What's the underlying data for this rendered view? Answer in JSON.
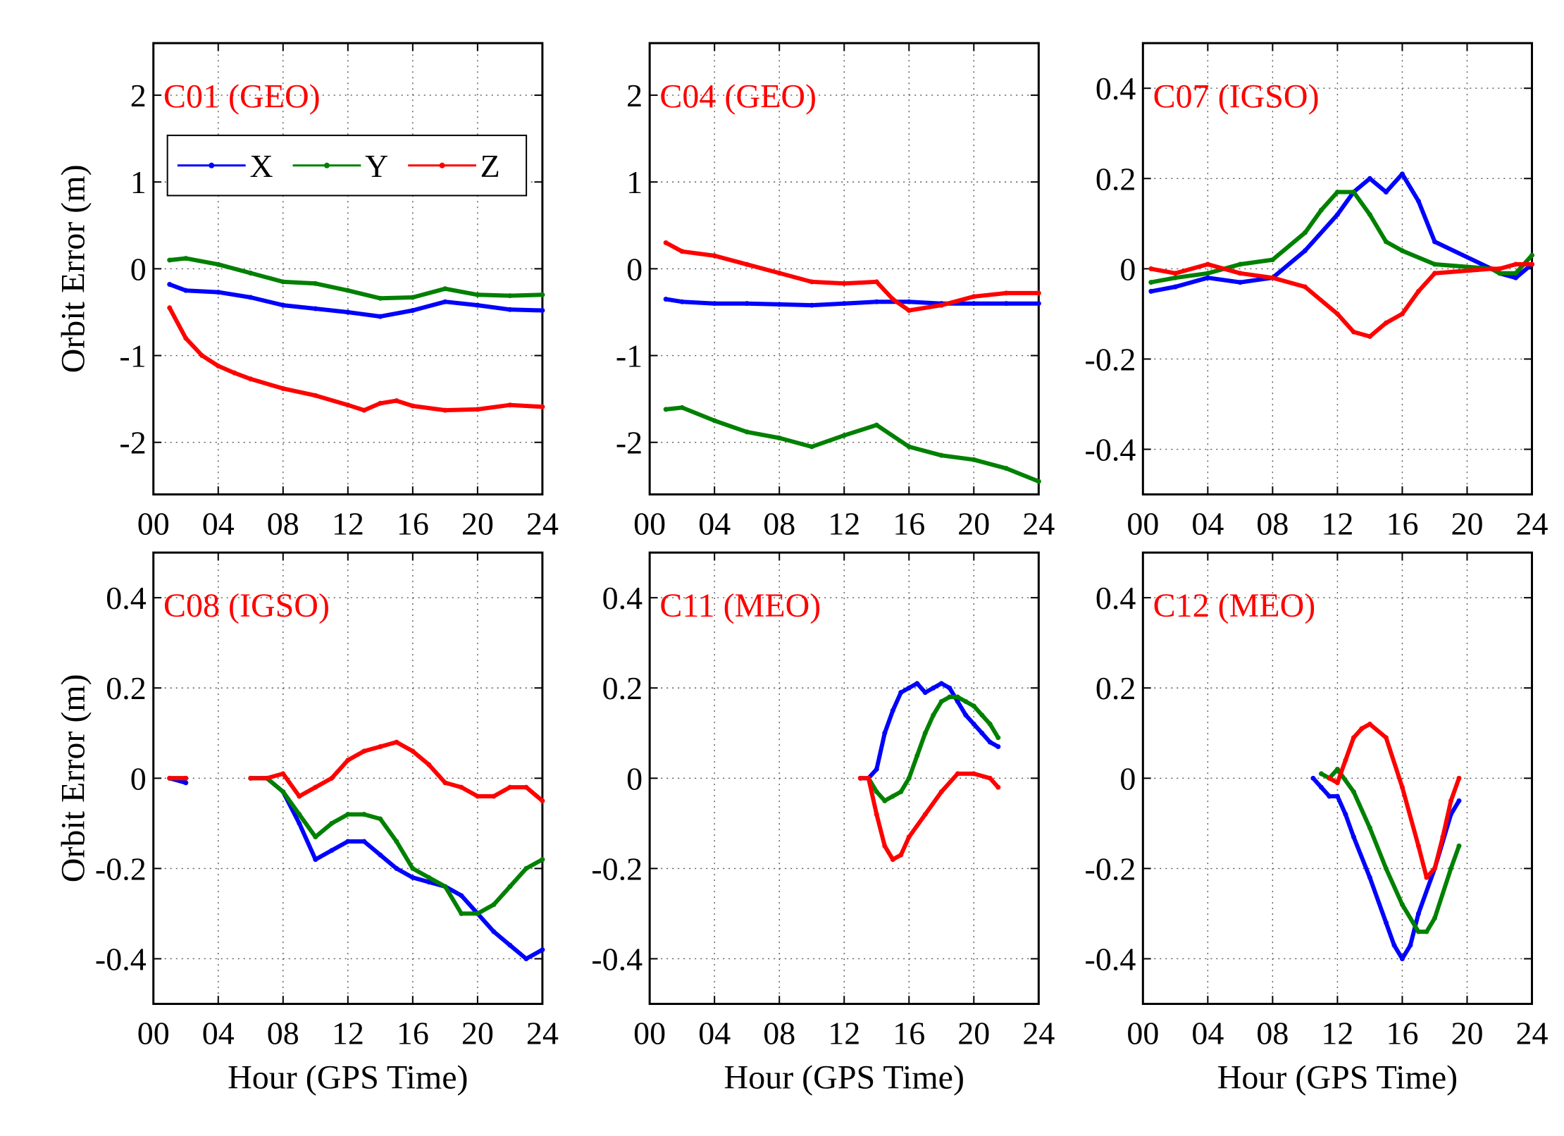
{
  "chart_data": [
    {
      "type": "line",
      "title": "C01 (GEO)",
      "xlabel": "",
      "ylabel": "Orbit Error (m)",
      "xlim": [
        0,
        24
      ],
      "ylim": [
        -2.6,
        2.6
      ],
      "xticks": [
        0,
        4,
        8,
        12,
        16,
        20,
        24
      ],
      "xtick_labels": [
        "00",
        "04",
        "08",
        "12",
        "16",
        "20",
        "24"
      ],
      "yticks": [
        -2,
        -1,
        0,
        1,
        2
      ],
      "ytick_labels": [
        "-2",
        "-1",
        "0",
        "1",
        "2"
      ],
      "grid": true,
      "legend": {
        "position": "top-left",
        "entries": [
          "X",
          "Y",
          "Z"
        ]
      },
      "series": [
        {
          "name": "X",
          "color": "#0000ff",
          "x": [
            1,
            2,
            4,
            6,
            8,
            10,
            12,
            14,
            16,
            18,
            20,
            22,
            24
          ],
          "y": [
            -0.18,
            -0.25,
            -0.27,
            -0.33,
            -0.42,
            -0.46,
            -0.5,
            -0.55,
            -0.48,
            -0.38,
            -0.42,
            -0.47,
            -0.48
          ]
        },
        {
          "name": "Y",
          "color": "#008000",
          "x": [
            1,
            2,
            4,
            6,
            8,
            10,
            12,
            14,
            16,
            18,
            20,
            22,
            24
          ],
          "y": [
            0.1,
            0.12,
            0.05,
            -0.05,
            -0.15,
            -0.17,
            -0.25,
            -0.34,
            -0.33,
            -0.23,
            -0.3,
            -0.31,
            -0.3
          ]
        },
        {
          "name": "Z",
          "color": "#ff0000",
          "x": [
            1,
            2,
            3,
            4,
            5,
            6,
            8,
            10,
            12,
            13,
            14,
            15,
            16,
            18,
            20,
            22,
            24
          ],
          "y": [
            -0.45,
            -0.8,
            -1.0,
            -1.12,
            -1.2,
            -1.27,
            -1.38,
            -1.46,
            -1.57,
            -1.63,
            -1.55,
            -1.52,
            -1.58,
            -1.63,
            -1.62,
            -1.57,
            -1.59
          ]
        }
      ]
    },
    {
      "type": "line",
      "title": "C04 (GEO)",
      "xlabel": "",
      "ylabel": "",
      "xlim": [
        0,
        24
      ],
      "ylim": [
        -2.6,
        2.6
      ],
      "xticks": [
        0,
        4,
        8,
        12,
        16,
        20,
        24
      ],
      "xtick_labels": [
        "00",
        "04",
        "08",
        "12",
        "16",
        "20",
        "24"
      ],
      "yticks": [
        -2,
        -1,
        0,
        1,
        2
      ],
      "ytick_labels": [
        "-2",
        "-1",
        "0",
        "1",
        "2"
      ],
      "grid": true,
      "series": [
        {
          "name": "X",
          "color": "#0000ff",
          "x": [
            1,
            2,
            4,
            6,
            8,
            10,
            12,
            14,
            16,
            18,
            20,
            22,
            24
          ],
          "y": [
            -0.35,
            -0.38,
            -0.4,
            -0.4,
            -0.41,
            -0.42,
            -0.4,
            -0.38,
            -0.38,
            -0.4,
            -0.4,
            -0.4,
            -0.4
          ]
        },
        {
          "name": "Y",
          "color": "#008000",
          "x": [
            1,
            2,
            4,
            6,
            8,
            10,
            12,
            14,
            16,
            18,
            20,
            22,
            24
          ],
          "y": [
            -1.62,
            -1.6,
            -1.75,
            -1.88,
            -1.95,
            -2.05,
            -1.92,
            -1.8,
            -2.05,
            -2.15,
            -2.2,
            -2.3,
            -2.45
          ]
        },
        {
          "name": "Z",
          "color": "#ff0000",
          "x": [
            1,
            2,
            4,
            6,
            8,
            10,
            12,
            14,
            15,
            16,
            18,
            20,
            22,
            24
          ],
          "y": [
            0.3,
            0.2,
            0.15,
            0.05,
            -0.05,
            -0.15,
            -0.17,
            -0.15,
            -0.35,
            -0.48,
            -0.42,
            -0.32,
            -0.28,
            -0.28
          ]
        }
      ]
    },
    {
      "type": "line",
      "title": "C07 (IGSO)",
      "xlabel": "",
      "ylabel": "",
      "xlim": [
        0,
        24
      ],
      "ylim": [
        -0.5,
        0.5
      ],
      "xticks": [
        0,
        4,
        8,
        12,
        16,
        20,
        24
      ],
      "xtick_labels": [
        "00",
        "04",
        "08",
        "12",
        "16",
        "20",
        "24"
      ],
      "yticks": [
        -0.4,
        -0.2,
        0,
        0.2,
        0.4
      ],
      "ytick_labels": [
        "-0.4",
        "-0.2",
        "0",
        "0.2",
        "0.4"
      ],
      "grid": true,
      "series": [
        {
          "name": "X",
          "color": "#0000ff",
          "x": [
            0.5,
            2,
            4,
            6,
            8,
            10,
            12,
            13,
            14,
            15,
            16,
            17,
            18,
            21.5,
            22,
            23,
            24
          ],
          "y": [
            -0.05,
            -0.04,
            -0.02,
            -0.03,
            -0.02,
            0.04,
            0.12,
            0.17,
            0.2,
            0.17,
            0.21,
            0.15,
            0.06,
            0.0,
            -0.01,
            -0.02,
            0.01
          ]
        },
        {
          "name": "Y",
          "color": "#008000",
          "x": [
            0.5,
            2,
            4,
            6,
            8,
            10,
            11,
            12,
            13,
            14,
            15,
            16,
            18,
            21.5,
            22,
            23,
            24
          ],
          "y": [
            -0.03,
            -0.02,
            -0.01,
            0.01,
            0.02,
            0.08,
            0.13,
            0.17,
            0.17,
            0.12,
            0.06,
            0.04,
            0.01,
            0.0,
            -0.01,
            -0.01,
            0.03
          ]
        },
        {
          "name": "Z",
          "color": "#ff0000",
          "x": [
            0.5,
            2,
            4,
            6,
            8,
            10,
            12,
            13,
            14,
            15,
            16,
            17,
            18,
            21.5,
            22,
            23,
            24
          ],
          "y": [
            0.0,
            -0.01,
            0.01,
            -0.01,
            -0.02,
            -0.04,
            -0.1,
            -0.14,
            -0.15,
            -0.12,
            -0.1,
            -0.05,
            -0.01,
            0.0,
            0.0,
            0.01,
            0.01
          ]
        }
      ]
    },
    {
      "type": "line",
      "title": "C08 (IGSO)",
      "xlabel": "Hour (GPS Time)",
      "ylabel": "Orbit Error (m)",
      "xlim": [
        0,
        24
      ],
      "ylim": [
        -0.5,
        0.5
      ],
      "xticks": [
        0,
        4,
        8,
        12,
        16,
        20,
        24
      ],
      "xtick_labels": [
        "00",
        "04",
        "08",
        "12",
        "16",
        "20",
        "24"
      ],
      "yticks": [
        -0.4,
        -0.2,
        0,
        0.2,
        0.4
      ],
      "ytick_labels": [
        "-0.4",
        "-0.2",
        "0",
        "0.2",
        "0.4"
      ],
      "grid": true,
      "series": [
        {
          "name": "X",
          "color": "#0000ff",
          "x": [
            1,
            2,
            null,
            6,
            7,
            8,
            9,
            10,
            11,
            12,
            13,
            14,
            15,
            16,
            17,
            18,
            19,
            20,
            21,
            22,
            23,
            24
          ],
          "y": [
            0.0,
            -0.01,
            null,
            0.0,
            0.0,
            -0.03,
            -0.1,
            -0.18,
            -0.16,
            -0.14,
            -0.14,
            -0.17,
            -0.2,
            -0.22,
            -0.23,
            -0.24,
            -0.26,
            -0.3,
            -0.34,
            -0.37,
            -0.4,
            -0.38
          ]
        },
        {
          "name": "Y",
          "color": "#008000",
          "x": [
            1,
            2,
            null,
            6,
            7,
            8,
            9,
            10,
            11,
            12,
            13,
            14,
            15,
            16,
            17,
            18,
            19,
            20,
            21,
            22,
            23,
            24
          ],
          "y": [
            0.0,
            0.0,
            null,
            0.0,
            0.0,
            -0.03,
            -0.08,
            -0.13,
            -0.1,
            -0.08,
            -0.08,
            -0.09,
            -0.14,
            -0.2,
            -0.22,
            -0.24,
            -0.3,
            -0.3,
            -0.28,
            -0.24,
            -0.2,
            -0.18
          ]
        },
        {
          "name": "Z",
          "color": "#ff0000",
          "x": [
            1,
            2,
            null,
            6,
            7,
            8,
            9,
            10,
            11,
            12,
            13,
            14,
            15,
            16,
            17,
            18,
            19,
            20,
            21,
            22,
            23,
            24
          ],
          "y": [
            0.0,
            0.0,
            null,
            0.0,
            0.0,
            0.01,
            -0.04,
            -0.02,
            0.0,
            0.04,
            0.06,
            0.07,
            0.08,
            0.06,
            0.03,
            -0.01,
            -0.02,
            -0.04,
            -0.04,
            -0.02,
            -0.02,
            -0.05
          ]
        }
      ]
    },
    {
      "type": "line",
      "title": "C11 (MEO)",
      "xlabel": "Hour (GPS Time)",
      "ylabel": "",
      "xlim": [
        0,
        24
      ],
      "ylim": [
        -0.5,
        0.5
      ],
      "xticks": [
        0,
        4,
        8,
        12,
        16,
        20,
        24
      ],
      "xtick_labels": [
        "00",
        "04",
        "08",
        "12",
        "16",
        "20",
        "24"
      ],
      "yticks": [
        -0.4,
        -0.2,
        0,
        0.2,
        0.4
      ],
      "ytick_labels": [
        "-0.4",
        "-0.2",
        "0",
        "0.2",
        "0.4"
      ],
      "grid": true,
      "series": [
        {
          "name": "X",
          "color": "#0000ff",
          "x": [
            13,
            13.5,
            14,
            14.5,
            15,
            15.5,
            16,
            16.5,
            17,
            17.5,
            18,
            18.5,
            19,
            19.5,
            20,
            20.5,
            21,
            21.5
          ],
          "y": [
            0.0,
            0.0,
            0.02,
            0.1,
            0.15,
            0.19,
            0.2,
            0.21,
            0.19,
            0.2,
            0.21,
            0.2,
            0.17,
            0.14,
            0.12,
            0.1,
            0.08,
            0.07
          ]
        },
        {
          "name": "Y",
          "color": "#008000",
          "x": [
            13.5,
            14,
            14.5,
            15,
            15.5,
            16,
            16.5,
            17,
            17.5,
            18,
            18.5,
            19,
            19.5,
            20,
            20.5,
            21,
            21.5
          ],
          "y": [
            0.0,
            -0.03,
            -0.05,
            -0.04,
            -0.03,
            0.0,
            0.05,
            0.1,
            0.14,
            0.17,
            0.18,
            0.18,
            0.17,
            0.16,
            0.14,
            0.12,
            0.09
          ]
        },
        {
          "name": "Z",
          "color": "#ff0000",
          "x": [
            13,
            13.5,
            14,
            14.5,
            15,
            15.5,
            16,
            17,
            18,
            19,
            20,
            21,
            21.5
          ],
          "y": [
            0.0,
            0.0,
            -0.08,
            -0.15,
            -0.18,
            -0.17,
            -0.13,
            -0.08,
            -0.03,
            0.01,
            0.01,
            0.0,
            -0.02
          ]
        }
      ]
    },
    {
      "type": "line",
      "title": "C12 (MEO)",
      "xlabel": "Hour (GPS Time)",
      "ylabel": "",
      "xlim": [
        0,
        24
      ],
      "ylim": [
        -0.5,
        0.5
      ],
      "xticks": [
        0,
        4,
        8,
        12,
        16,
        20,
        24
      ],
      "xtick_labels": [
        "00",
        "04",
        "08",
        "12",
        "16",
        "20",
        "24"
      ],
      "yticks": [
        -0.4,
        -0.2,
        0,
        0.2,
        0.4
      ],
      "ytick_labels": [
        "-0.4",
        "-0.2",
        "0",
        "0.2",
        "0.4"
      ],
      "grid": true,
      "series": [
        {
          "name": "X",
          "color": "#0000ff",
          "x": [
            10.5,
            11,
            11.5,
            12,
            12.5,
            13,
            14,
            15,
            15.5,
            16,
            16.5,
            17,
            18,
            19,
            19.5
          ],
          "y": [
            0.0,
            -0.02,
            -0.04,
            -0.04,
            -0.08,
            -0.13,
            -0.22,
            -0.32,
            -0.37,
            -0.4,
            -0.37,
            -0.3,
            -0.2,
            -0.08,
            -0.05
          ]
        },
        {
          "name": "Y",
          "color": "#008000",
          "x": [
            11,
            11.5,
            12,
            13,
            14,
            15,
            16,
            17,
            17.5,
            18,
            19,
            19.5
          ],
          "y": [
            0.01,
            0.0,
            0.02,
            -0.03,
            -0.11,
            -0.2,
            -0.28,
            -0.34,
            -0.34,
            -0.31,
            -0.2,
            -0.15
          ]
        },
        {
          "name": "Z",
          "color": "#ff0000",
          "x": [
            11.5,
            12,
            12.5,
            13,
            13.5,
            14,
            15,
            16,
            17,
            17.5,
            18,
            18.5,
            19,
            19.5
          ],
          "y": [
            0.0,
            -0.01,
            0.04,
            0.09,
            0.11,
            0.12,
            0.09,
            -0.02,
            -0.15,
            -0.22,
            -0.2,
            -0.13,
            -0.05,
            0.0
          ]
        }
      ]
    }
  ]
}
